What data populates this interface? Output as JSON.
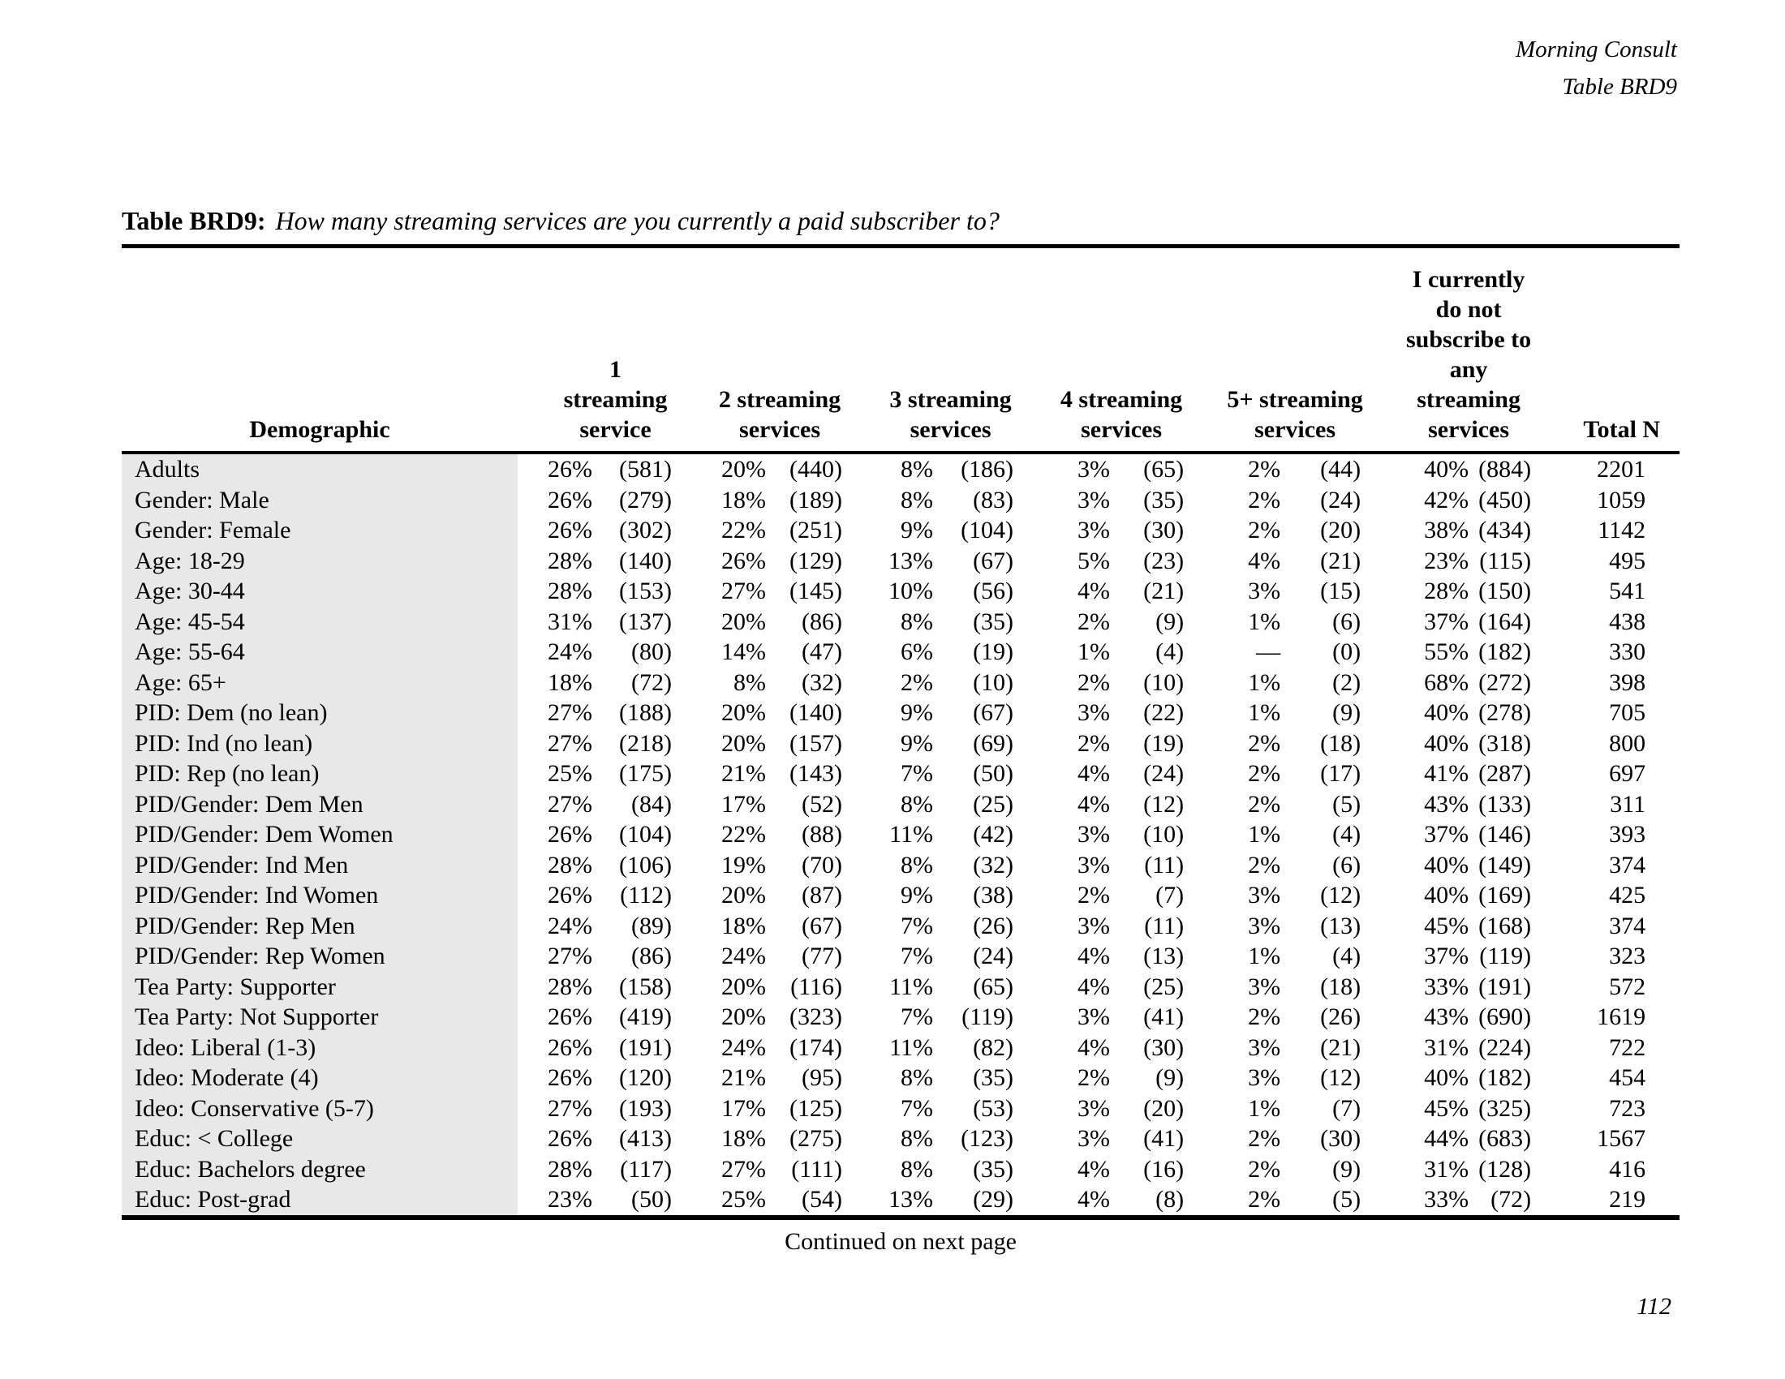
{
  "page_header": {
    "line1": "Morning Consult",
    "line2": "Table BRD9"
  },
  "table": {
    "title_label": "Table BRD9:",
    "title_question": "How many streaming services are you currently a paid subscriber to?",
    "columns": {
      "demographic": "Demographic",
      "groups": [
        "1 streaming\nservice",
        "2 streaming\nservices",
        "3 streaming\nservices",
        "4 streaming\nservices",
        "5+ streaming\nservices",
        "I currently\ndo not\nsubscribe to\nany\nstreaming\nservices"
      ],
      "total": "Total N"
    },
    "rows": [
      {
        "demographic": "Adults",
        "cells": [
          [
            "26%",
            "(581)"
          ],
          [
            "20%",
            "(440)"
          ],
          [
            "8%",
            "(186)"
          ],
          [
            "3%",
            "(65)"
          ],
          [
            "2%",
            "(44)"
          ],
          [
            "40%",
            "(884)"
          ]
        ],
        "total": "2201"
      },
      {
        "demographic": "Gender: Male",
        "cells": [
          [
            "26%",
            "(279)"
          ],
          [
            "18%",
            "(189)"
          ],
          [
            "8%",
            "(83)"
          ],
          [
            "3%",
            "(35)"
          ],
          [
            "2%",
            "(24)"
          ],
          [
            "42%",
            "(450)"
          ]
        ],
        "total": "1059"
      },
      {
        "demographic": "Gender: Female",
        "cells": [
          [
            "26%",
            "(302)"
          ],
          [
            "22%",
            "(251)"
          ],
          [
            "9%",
            "(104)"
          ],
          [
            "3%",
            "(30)"
          ],
          [
            "2%",
            "(20)"
          ],
          [
            "38%",
            "(434)"
          ]
        ],
        "total": "1142"
      },
      {
        "demographic": "Age: 18-29",
        "cells": [
          [
            "28%",
            "(140)"
          ],
          [
            "26%",
            "(129)"
          ],
          [
            "13%",
            "(67)"
          ],
          [
            "5%",
            "(23)"
          ],
          [
            "4%",
            "(21)"
          ],
          [
            "23%",
            "(115)"
          ]
        ],
        "total": "495"
      },
      {
        "demographic": "Age: 30-44",
        "cells": [
          [
            "28%",
            "(153)"
          ],
          [
            "27%",
            "(145)"
          ],
          [
            "10%",
            "(56)"
          ],
          [
            "4%",
            "(21)"
          ],
          [
            "3%",
            "(15)"
          ],
          [
            "28%",
            "(150)"
          ]
        ],
        "total": "541"
      },
      {
        "demographic": "Age: 45-54",
        "cells": [
          [
            "31%",
            "(137)"
          ],
          [
            "20%",
            "(86)"
          ],
          [
            "8%",
            "(35)"
          ],
          [
            "2%",
            "(9)"
          ],
          [
            "1%",
            "(6)"
          ],
          [
            "37%",
            "(164)"
          ]
        ],
        "total": "438"
      },
      {
        "demographic": "Age: 55-64",
        "cells": [
          [
            "24%",
            "(80)"
          ],
          [
            "14%",
            "(47)"
          ],
          [
            "6%",
            "(19)"
          ],
          [
            "1%",
            "(4)"
          ],
          [
            "—",
            "(0)"
          ],
          [
            "55%",
            "(182)"
          ]
        ],
        "total": "330"
      },
      {
        "demographic": "Age: 65+",
        "cells": [
          [
            "18%",
            "(72)"
          ],
          [
            "8%",
            "(32)"
          ],
          [
            "2%",
            "(10)"
          ],
          [
            "2%",
            "(10)"
          ],
          [
            "1%",
            "(2)"
          ],
          [
            "68%",
            "(272)"
          ]
        ],
        "total": "398"
      },
      {
        "demographic": "PID: Dem (no lean)",
        "cells": [
          [
            "27%",
            "(188)"
          ],
          [
            "20%",
            "(140)"
          ],
          [
            "9%",
            "(67)"
          ],
          [
            "3%",
            "(22)"
          ],
          [
            "1%",
            "(9)"
          ],
          [
            "40%",
            "(278)"
          ]
        ],
        "total": "705"
      },
      {
        "demographic": "PID: Ind (no lean)",
        "cells": [
          [
            "27%",
            "(218)"
          ],
          [
            "20%",
            "(157)"
          ],
          [
            "9%",
            "(69)"
          ],
          [
            "2%",
            "(19)"
          ],
          [
            "2%",
            "(18)"
          ],
          [
            "40%",
            "(318)"
          ]
        ],
        "total": "800"
      },
      {
        "demographic": "PID: Rep (no lean)",
        "cells": [
          [
            "25%",
            "(175)"
          ],
          [
            "21%",
            "(143)"
          ],
          [
            "7%",
            "(50)"
          ],
          [
            "4%",
            "(24)"
          ],
          [
            "2%",
            "(17)"
          ],
          [
            "41%",
            "(287)"
          ]
        ],
        "total": "697"
      },
      {
        "demographic": "PID/Gender: Dem Men",
        "cells": [
          [
            "27%",
            "(84)"
          ],
          [
            "17%",
            "(52)"
          ],
          [
            "8%",
            "(25)"
          ],
          [
            "4%",
            "(12)"
          ],
          [
            "2%",
            "(5)"
          ],
          [
            "43%",
            "(133)"
          ]
        ],
        "total": "311"
      },
      {
        "demographic": "PID/Gender: Dem Women",
        "cells": [
          [
            "26%",
            "(104)"
          ],
          [
            "22%",
            "(88)"
          ],
          [
            "11%",
            "(42)"
          ],
          [
            "3%",
            "(10)"
          ],
          [
            "1%",
            "(4)"
          ],
          [
            "37%",
            "(146)"
          ]
        ],
        "total": "393"
      },
      {
        "demographic": "PID/Gender: Ind Men",
        "cells": [
          [
            "28%",
            "(106)"
          ],
          [
            "19%",
            "(70)"
          ],
          [
            "8%",
            "(32)"
          ],
          [
            "3%",
            "(11)"
          ],
          [
            "2%",
            "(6)"
          ],
          [
            "40%",
            "(149)"
          ]
        ],
        "total": "374"
      },
      {
        "demographic": "PID/Gender: Ind Women",
        "cells": [
          [
            "26%",
            "(112)"
          ],
          [
            "20%",
            "(87)"
          ],
          [
            "9%",
            "(38)"
          ],
          [
            "2%",
            "(7)"
          ],
          [
            "3%",
            "(12)"
          ],
          [
            "40%",
            "(169)"
          ]
        ],
        "total": "425"
      },
      {
        "demographic": "PID/Gender: Rep Men",
        "cells": [
          [
            "24%",
            "(89)"
          ],
          [
            "18%",
            "(67)"
          ],
          [
            "7%",
            "(26)"
          ],
          [
            "3%",
            "(11)"
          ],
          [
            "3%",
            "(13)"
          ],
          [
            "45%",
            "(168)"
          ]
        ],
        "total": "374"
      },
      {
        "demographic": "PID/Gender: Rep Women",
        "cells": [
          [
            "27%",
            "(86)"
          ],
          [
            "24%",
            "(77)"
          ],
          [
            "7%",
            "(24)"
          ],
          [
            "4%",
            "(13)"
          ],
          [
            "1%",
            "(4)"
          ],
          [
            "37%",
            "(119)"
          ]
        ],
        "total": "323"
      },
      {
        "demographic": "Tea Party: Supporter",
        "cells": [
          [
            "28%",
            "(158)"
          ],
          [
            "20%",
            "(116)"
          ],
          [
            "11%",
            "(65)"
          ],
          [
            "4%",
            "(25)"
          ],
          [
            "3%",
            "(18)"
          ],
          [
            "33%",
            "(191)"
          ]
        ],
        "total": "572"
      },
      {
        "demographic": "Tea Party: Not Supporter",
        "cells": [
          [
            "26%",
            "(419)"
          ],
          [
            "20%",
            "(323)"
          ],
          [
            "7%",
            "(119)"
          ],
          [
            "3%",
            "(41)"
          ],
          [
            "2%",
            "(26)"
          ],
          [
            "43%",
            "(690)"
          ]
        ],
        "total": "1619"
      },
      {
        "demographic": "Ideo: Liberal (1-3)",
        "cells": [
          [
            "26%",
            "(191)"
          ],
          [
            "24%",
            "(174)"
          ],
          [
            "11%",
            "(82)"
          ],
          [
            "4%",
            "(30)"
          ],
          [
            "3%",
            "(21)"
          ],
          [
            "31%",
            "(224)"
          ]
        ],
        "total": "722"
      },
      {
        "demographic": "Ideo: Moderate (4)",
        "cells": [
          [
            "26%",
            "(120)"
          ],
          [
            "21%",
            "(95)"
          ],
          [
            "8%",
            "(35)"
          ],
          [
            "2%",
            "(9)"
          ],
          [
            "3%",
            "(12)"
          ],
          [
            "40%",
            "(182)"
          ]
        ],
        "total": "454"
      },
      {
        "demographic": "Ideo: Conservative (5-7)",
        "cells": [
          [
            "27%",
            "(193)"
          ],
          [
            "17%",
            "(125)"
          ],
          [
            "7%",
            "(53)"
          ],
          [
            "3%",
            "(20)"
          ],
          [
            "1%",
            "(7)"
          ],
          [
            "45%",
            "(325)"
          ]
        ],
        "total": "723"
      },
      {
        "demographic": "Educ: < College",
        "cells": [
          [
            "26%",
            "(413)"
          ],
          [
            "18%",
            "(275)"
          ],
          [
            "8%",
            "(123)"
          ],
          [
            "3%",
            "(41)"
          ],
          [
            "2%",
            "(30)"
          ],
          [
            "44%",
            "(683)"
          ]
        ],
        "total": "1567"
      },
      {
        "demographic": "Educ: Bachelors degree",
        "cells": [
          [
            "28%",
            "(117)"
          ],
          [
            "27%",
            "(111)"
          ],
          [
            "8%",
            "(35)"
          ],
          [
            "4%",
            "(16)"
          ],
          [
            "2%",
            "(9)"
          ],
          [
            "31%",
            "(128)"
          ]
        ],
        "total": "416"
      },
      {
        "demographic": "Educ: Post-grad",
        "cells": [
          [
            "23%",
            "(50)"
          ],
          [
            "25%",
            "(54)"
          ],
          [
            "13%",
            "(29)"
          ],
          [
            "4%",
            "(8)"
          ],
          [
            "2%",
            "(5)"
          ],
          [
            "33%",
            "(72)"
          ]
        ],
        "total": "219"
      }
    ]
  },
  "footer": {
    "continued": "Continued on next page",
    "page_number": "112"
  }
}
